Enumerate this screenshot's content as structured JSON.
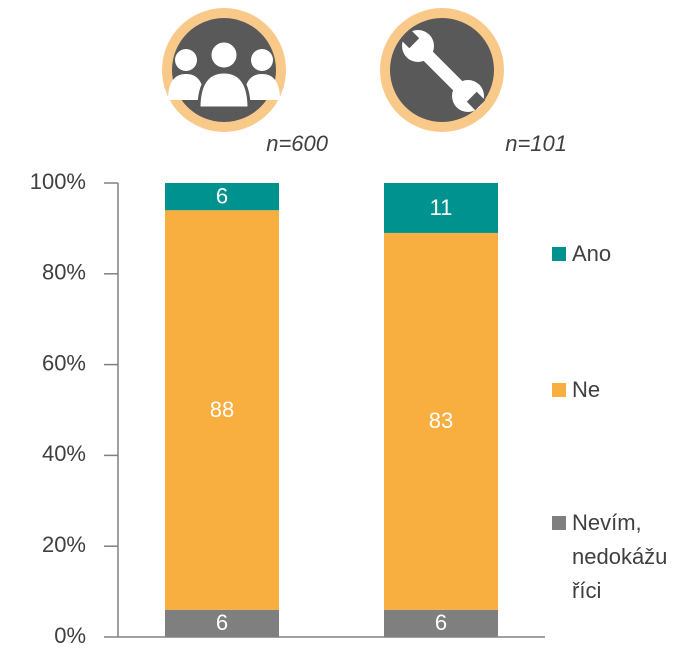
{
  "chart_data": {
    "type": "stacked_bar",
    "categories": [
      "n=600",
      "n=101"
    ],
    "series": [
      {
        "name": "Nevím, nedokážu říci",
        "color": "#7f7f7f",
        "values": [
          6,
          6
        ]
      },
      {
        "name": "Ne",
        "color": "#f9ae40",
        "values": [
          88,
          83
        ]
      },
      {
        "name": "Ano",
        "color": "#00928f",
        "values": [
          6,
          11
        ]
      }
    ],
    "ylim": [
      0,
      100
    ],
    "yticks": [
      {
        "value": 0,
        "label": "0%"
      },
      {
        "value": 20,
        "label": "20%"
      },
      {
        "value": 40,
        "label": "40%"
      },
      {
        "value": 60,
        "label": "60%"
      },
      {
        "value": 80,
        "label": "80%"
      },
      {
        "value": 100,
        "label": "100%"
      }
    ],
    "legend": "right"
  }
}
